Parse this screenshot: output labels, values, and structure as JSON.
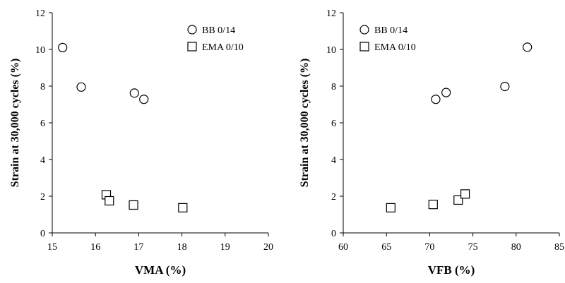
{
  "chart_data": [
    {
      "type": "scatter",
      "title": "",
      "xlabel": "VMA (%)",
      "ylabel": "Strain at 30,000 cycles (%)",
      "xlim": [
        15,
        20
      ],
      "ylim": [
        0,
        12
      ],
      "xticks": [
        15,
        16,
        17,
        18,
        19,
        20
      ],
      "yticks": [
        0,
        2,
        4,
        6,
        8,
        10,
        12
      ],
      "grid": false,
      "legend_position": "top-right",
      "series": [
        {
          "name": "BB 0/14",
          "marker": "circle",
          "x": [
            15.24,
            15.67,
            16.9,
            17.12
          ],
          "y": [
            10.1,
            7.95,
            7.62,
            7.28
          ]
        },
        {
          "name": "EMA 0/10",
          "marker": "square",
          "x": [
            16.25,
            16.32,
            16.88,
            18.02
          ],
          "y": [
            2.08,
            1.75,
            1.52,
            1.37
          ]
        }
      ]
    },
    {
      "type": "scatter",
      "title": "",
      "xlabel": "VFB (%)",
      "ylabel": "Strain at 30,000 cycles (%)",
      "xlim": [
        60,
        85
      ],
      "ylim": [
        0,
        12
      ],
      "xticks": [
        60,
        65,
        70,
        75,
        80,
        85
      ],
      "yticks": [
        0,
        2,
        4,
        6,
        8,
        10,
        12
      ],
      "grid": false,
      "legend_position": "top-left",
      "series": [
        {
          "name": "BB 0/14",
          "marker": "circle",
          "x": [
            70.7,
            71.9,
            78.7,
            81.3
          ],
          "y": [
            7.28,
            7.65,
            7.98,
            10.12
          ]
        },
        {
          "name": "EMA 0/10",
          "marker": "square",
          "x": [
            65.5,
            70.4,
            73.3,
            74.1
          ],
          "y": [
            1.37,
            1.55,
            1.79,
            2.12
          ]
        }
      ]
    }
  ]
}
